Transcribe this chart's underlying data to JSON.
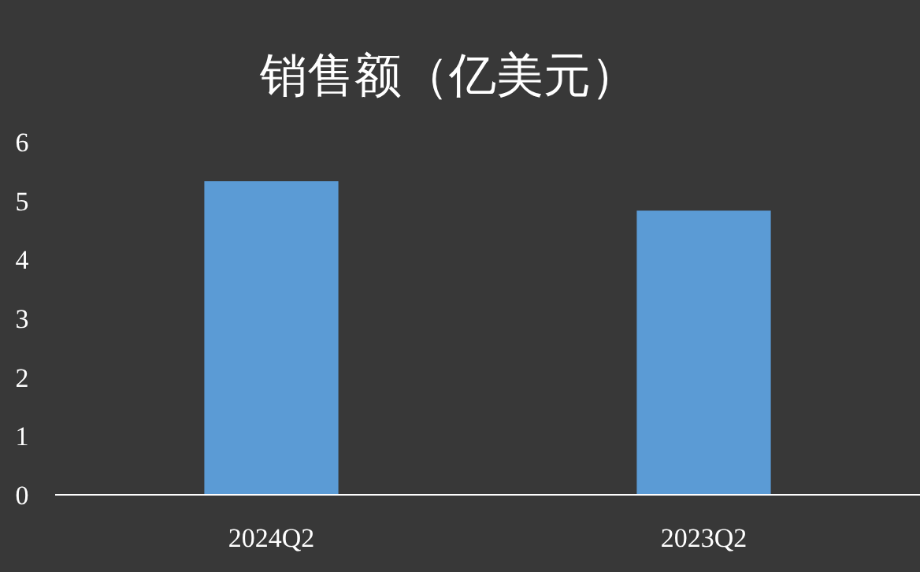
{
  "chart_data": {
    "type": "bar",
    "title": "销售额（亿美元）",
    "categories": [
      "2024Q2",
      "2023Q2"
    ],
    "values": [
      5.33,
      4.83
    ],
    "color": "#5b9bd5",
    "ylim": [
      0,
      6
    ],
    "yticks": [
      0,
      1,
      2,
      3,
      4,
      5,
      6
    ],
    "grid": false
  }
}
